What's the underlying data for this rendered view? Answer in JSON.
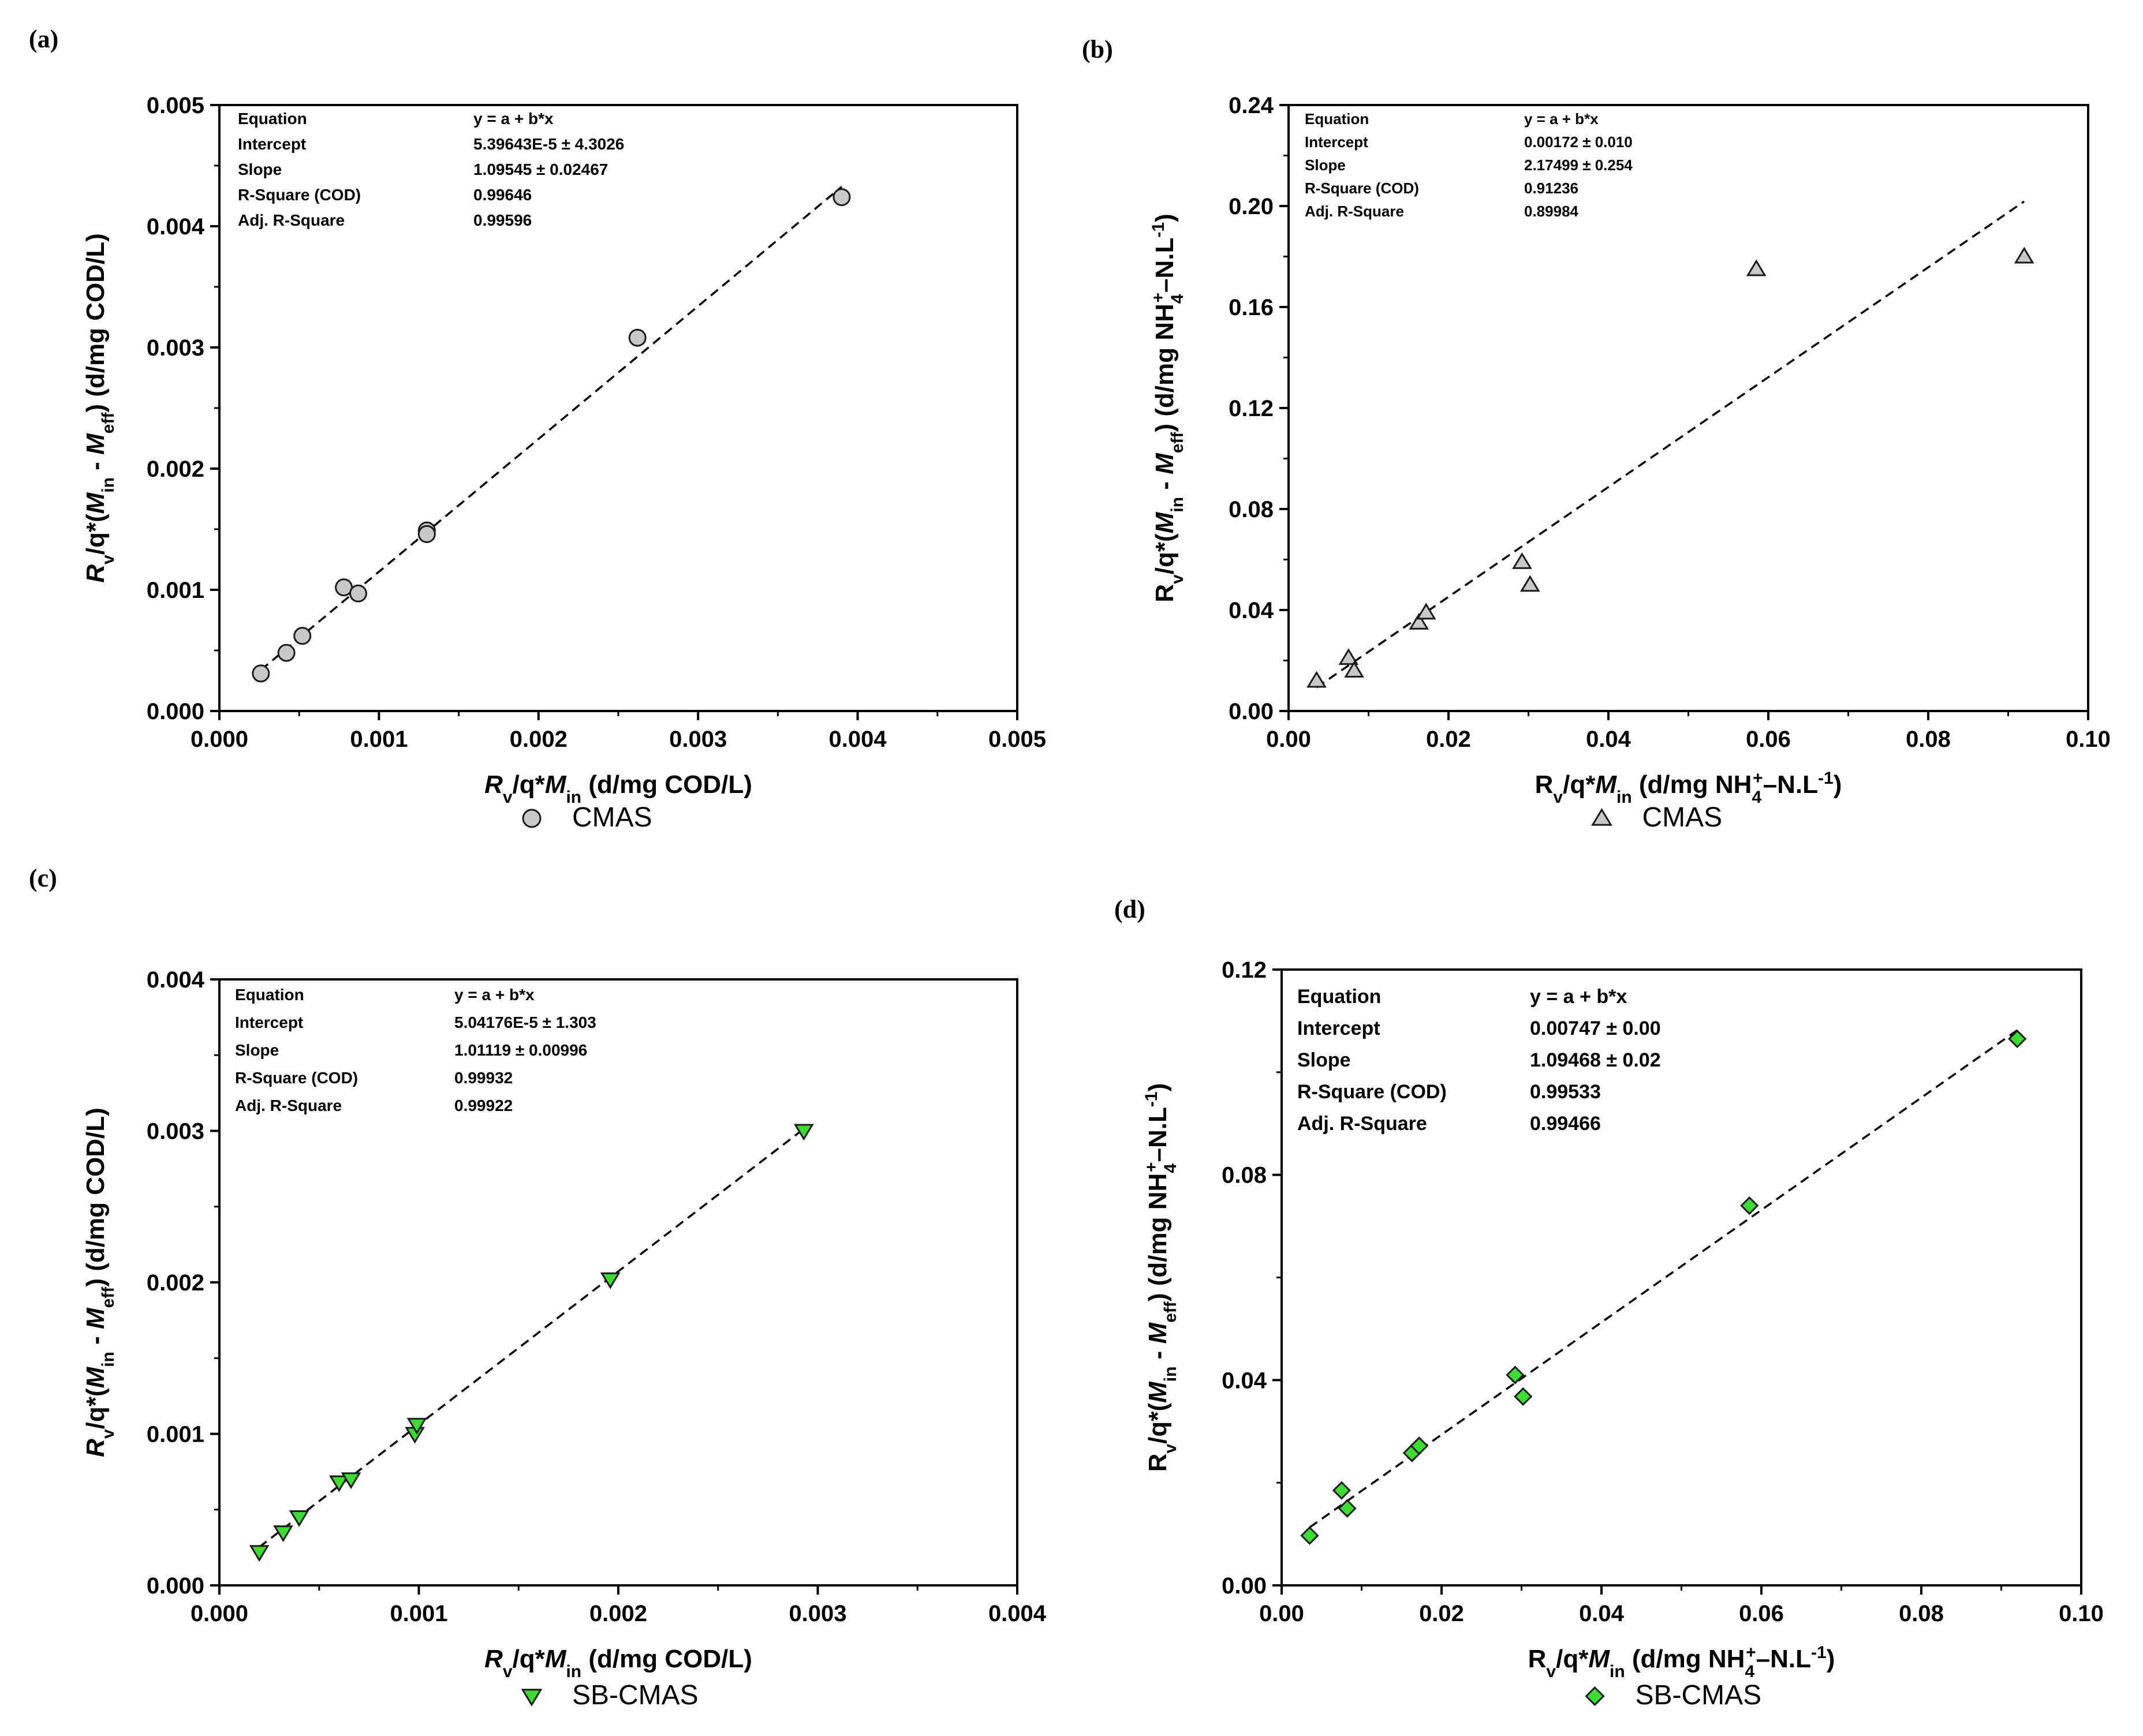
{
  "chart_data": [
    {
      "type": "scatter",
      "panel_label": "(a)",
      "xlabel": "R_v/q*M_in (d/mg COD/L)",
      "ylabel": "R_v/q*(M_in - M_eff) (d/mg COD/L)",
      "xlim": [
        0,
        0.005
      ],
      "ylim": [
        0,
        0.005
      ],
      "xticks": [
        "0.000",
        "0.001",
        "0.002",
        "0.003",
        "0.004",
        "0.005"
      ],
      "yticks": [
        "0.000",
        "0.001",
        "0.002",
        "0.003",
        "0.004",
        "0.005"
      ],
      "legend": "CMAS",
      "marker": "circle",
      "marker_color": "#c8c8c8",
      "series": [
        {
          "name": "CMAS",
          "x": [
            0.00026,
            0.00042,
            0.00052,
            0.00078,
            0.00087,
            0.0013,
            0.0013,
            0.00262,
            0.0039
          ],
          "y": [
            0.00031,
            0.00048,
            0.00062,
            0.00102,
            0.00097,
            0.00149,
            0.00146,
            0.00308,
            0.00424
          ]
        }
      ],
      "fit": {
        "intercept": 5.39643e-05,
        "slope": 1.09545,
        "x_range": [
          0.00026,
          0.0039
        ]
      },
      "stats_table": [
        [
          "Equation",
          "y = a + b*x"
        ],
        [
          "Intercept",
          "5.39643E-5 ± 4.3026"
        ],
        [
          "Slope",
          "1.09545 ± 0.02467"
        ],
        [
          "R-Square (COD)",
          "0.99646"
        ],
        [
          "Adj. R-Square",
          "0.99596"
        ]
      ]
    },
    {
      "type": "scatter",
      "panel_label": "(b)",
      "xlabel": "R_v/q*M_in (d/mg NH4+–N.L-1)",
      "ylabel": "R_v/q*(M_in - M_eff) (d/mg NH4+–N.L-1)",
      "xlim": [
        0,
        0.1
      ],
      "ylim": [
        0,
        0.24
      ],
      "xticks": [
        "0.00",
        "0.02",
        "0.04",
        "0.06",
        "0.08",
        "0.10"
      ],
      "yticks": [
        "0.00",
        "0.04",
        "0.08",
        "0.12",
        "0.16",
        "0.20",
        "0.24"
      ],
      "legend": "CMAS",
      "marker": "triangle-up",
      "marker_color": "#c8c8c8",
      "series": [
        {
          "name": "CMAS",
          "x": [
            0.0035,
            0.0075,
            0.0082,
            0.0163,
            0.0172,
            0.0292,
            0.0302,
            0.0585,
            0.092
          ],
          "y": [
            0.012,
            0.021,
            0.016,
            0.035,
            0.039,
            0.059,
            0.05,
            0.175,
            0.18
          ]
        }
      ],
      "fit": {
        "intercept": 0.00172,
        "slope": 2.17499,
        "x_range": [
          0.0035,
          0.092
        ]
      },
      "stats_table": [
        [
          "Equation",
          "y = a + b*x"
        ],
        [
          "Intercept",
          "0.00172 ± 0.010"
        ],
        [
          "Slope",
          "2.17499 ± 0.254"
        ],
        [
          "R-Square (COD)",
          "0.91236"
        ],
        [
          "Adj. R-Square",
          "0.89984"
        ]
      ]
    },
    {
      "type": "scatter",
      "panel_label": "(c)",
      "xlabel": "R_v/q*M_in (d/mg COD/L)",
      "ylabel": "R_v/q*(M_in - M_eff) (d/mg COD/L)",
      "xlim": [
        0,
        0.004
      ],
      "ylim": [
        0,
        0.004
      ],
      "xticks": [
        "0.000",
        "0.001",
        "0.002",
        "0.003",
        "0.004"
      ],
      "yticks": [
        "0.000",
        "0.001",
        "0.002",
        "0.003",
        "0.004"
      ],
      "legend": "SB-CMAS",
      "marker": "triangle-down",
      "marker_color": "#3cdc32",
      "series": [
        {
          "name": "SB-CMAS",
          "x": [
            0.0002,
            0.00032,
            0.0004,
            0.0006,
            0.00066,
            0.00098,
            0.00099,
            0.00196,
            0.00293
          ],
          "y": [
            0.00022,
            0.00035,
            0.00045,
            0.00068,
            0.0007,
            0.001,
            0.00106,
            0.00202,
            0.003
          ]
        }
      ],
      "fit": {
        "intercept": 5.04176e-05,
        "slope": 1.01119,
        "x_range": [
          0.0002,
          0.00293
        ]
      },
      "stats_table": [
        [
          "Equation",
          "y = a + b*x"
        ],
        [
          "Intercept",
          "5.04176E-5 ± 1.303"
        ],
        [
          "Slope",
          "1.01119 ± 0.00996"
        ],
        [
          "R-Square (COD)",
          "0.99932"
        ],
        [
          "Adj. R-Square",
          "0.99922"
        ]
      ]
    },
    {
      "type": "scatter",
      "panel_label": "(d)",
      "xlabel": "R_v/q*M_in (d/mg NH4+–N.L-1)",
      "ylabel": "R_v/q*(M_in - M_eff) (d/mg NH4+–N.L-1)",
      "xlim": [
        0,
        0.1
      ],
      "ylim": [
        0,
        0.12
      ],
      "xticks": [
        "0.00",
        "0.02",
        "0.04",
        "0.06",
        "0.08",
        "0.10"
      ],
      "yticks": [
        "0.00",
        "0.04",
        "0.08",
        "0.12"
      ],
      "legend": "SB-CMAS",
      "marker": "diamond",
      "marker_color": "#3cdc32",
      "series": [
        {
          "name": "SB-CMAS",
          "x": [
            0.0035,
            0.0075,
            0.0082,
            0.0163,
            0.0172,
            0.0292,
            0.0302,
            0.0585,
            0.092
          ],
          "y": [
            0.0097,
            0.0185,
            0.015,
            0.0258,
            0.0272,
            0.041,
            0.0368,
            0.074,
            0.1065
          ]
        }
      ],
      "fit": {
        "intercept": 0.00747,
        "slope": 1.09468,
        "x_range": [
          0.0035,
          0.092
        ]
      },
      "stats_table": [
        [
          "Equation",
          "y = a + b*x"
        ],
        [
          "Intercept",
          "0.00747 ± 0.00"
        ],
        [
          "Slope",
          "1.09468 ± 0.02"
        ],
        [
          "R-Square (COD)",
          "0.99533"
        ],
        [
          "Adj. R-Square",
          "0.99466"
        ]
      ]
    }
  ]
}
